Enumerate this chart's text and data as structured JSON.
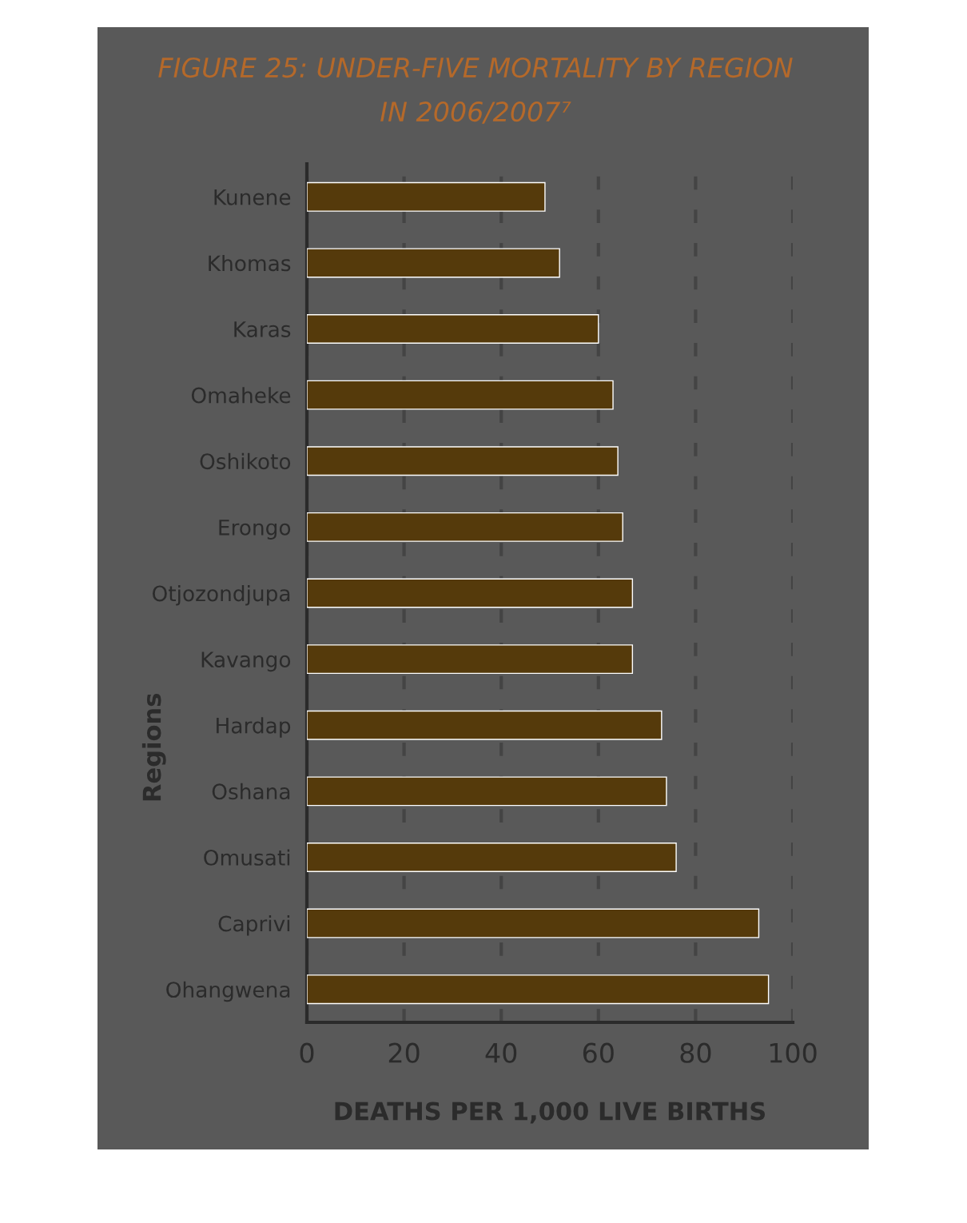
{
  "chart_data": {
    "type": "bar",
    "orientation": "horizontal",
    "title": "FIGURE 25: UNDER-FIVE MORTALITY BY REGION\nIN 2006/2007⁷",
    "xlabel": "DEATHS PER 1,000 LIVE BIRTHS",
    "ylabel": "Regions",
    "categories": [
      "Kunene",
      "Khomas",
      "Karas",
      "Omaheke",
      "Oshikoto",
      "Erongo",
      "Otjozondjupa",
      "Kavango",
      "Hardap",
      "Oshana",
      "Omusati",
      "Caprivi",
      "Ohangwena"
    ],
    "values": [
      49,
      52,
      60,
      63,
      64,
      65,
      67,
      67,
      73,
      74,
      76,
      93,
      95
    ],
    "color": "#553a0b",
    "xlim": [
      0,
      100
    ],
    "xticks": [
      0,
      20,
      40,
      60,
      80,
      100
    ],
    "grid": "x",
    "line_style": "dashed"
  }
}
